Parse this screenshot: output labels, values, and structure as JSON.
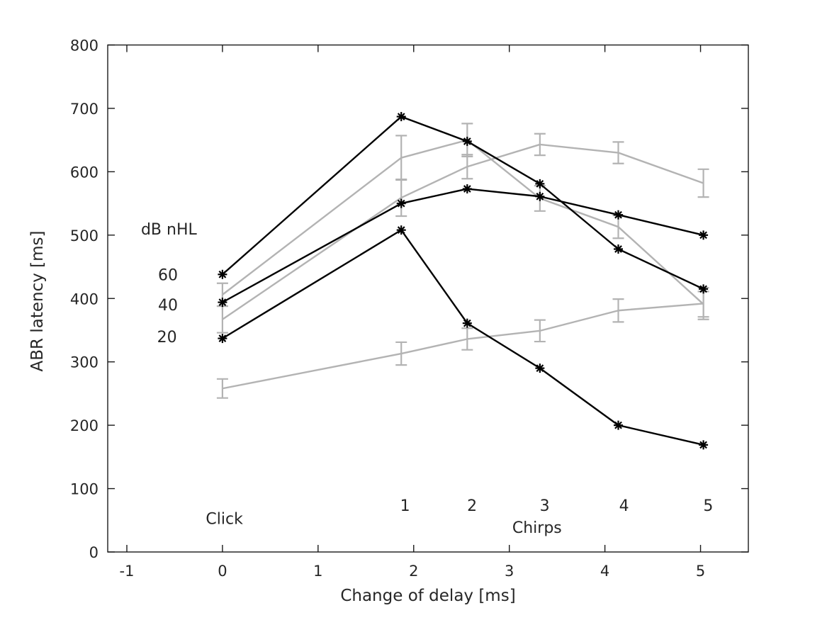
{
  "figure": {
    "background": "#ffffff",
    "text_color": "#262626",
    "spine_color": "#1a1a1a",
    "black_series_color": "#000000",
    "gray_series_color": "#b3b3b3"
  },
  "chart_data": {
    "type": "line",
    "title": "",
    "xlabel": "Change of delay [ms]",
    "ylabel": "ABR latency [ms]",
    "xlim": [
      -1.2,
      5.5
    ],
    "ylim": [
      0,
      800
    ],
    "xticks": [
      -1,
      0,
      1,
      2,
      3,
      4,
      5
    ],
    "yticks": [
      0,
      100,
      200,
      300,
      400,
      500,
      600,
      700,
      800
    ],
    "grid": false,
    "legend": null,
    "x": [
      0,
      1.87,
      2.56,
      3.32,
      4.14,
      5.03
    ],
    "x_condition_labels": [
      "Click",
      "Chirp 1",
      "Chirp 2",
      "Chirp 3",
      "Chirp 4",
      "Chirp 5"
    ],
    "series": [
      {
        "name": "gray-60dB",
        "color": "#b3b3b3",
        "marker": null,
        "values": [
          406,
          622,
          650,
          558,
          513,
          391
        ],
        "errors": [
          18,
          35,
          26,
          20,
          18,
          20
        ]
      },
      {
        "name": "gray-40dB",
        "color": "#b3b3b3",
        "marker": null,
        "values": [
          367,
          559,
          608,
          643,
          630,
          582
        ],
        "errors": [
          21,
          29,
          19,
          17,
          17,
          22
        ]
      },
      {
        "name": "gray-20dB",
        "color": "#b3b3b3",
        "marker": null,
        "values": [
          258,
          313,
          336,
          349,
          381,
          392
        ],
        "errors": [
          15,
          18,
          17,
          17,
          18,
          25
        ]
      },
      {
        "name": "black-60dB",
        "color": "#000000",
        "marker": "asterisk",
        "values": [
          438,
          687,
          648,
          581,
          478,
          415
        ],
        "errors": null
      },
      {
        "name": "black-40dB",
        "color": "#000000",
        "marker": "asterisk",
        "values": [
          394,
          550,
          573,
          561,
          532,
          500
        ],
        "errors": null
      },
      {
        "name": "black-20dB",
        "color": "#000000",
        "marker": "asterisk",
        "values": [
          337,
          508,
          361,
          290,
          200,
          169
        ],
        "errors": null
      }
    ],
    "annotations": [
      {
        "name": "annotation-db-nhl",
        "text": "dB nHL",
        "x": -0.56,
        "y": 510
      },
      {
        "name": "annotation-60",
        "text": "60",
        "x": -0.57,
        "y": 438
      },
      {
        "name": "annotation-40",
        "text": "40",
        "x": -0.57,
        "y": 390
      },
      {
        "name": "annotation-20",
        "text": "20",
        "x": -0.58,
        "y": 340
      },
      {
        "name": "annotation-click",
        "text": "Click",
        "x": 0.02,
        "y": 53
      },
      {
        "name": "annotation-chirp-1",
        "text": "1",
        "x": 1.91,
        "y": 74
      },
      {
        "name": "annotation-chirp-2",
        "text": "2",
        "x": 2.61,
        "y": 74
      },
      {
        "name": "annotation-chirp-3",
        "text": "3",
        "x": 3.37,
        "y": 74
      },
      {
        "name": "annotation-chirp-4",
        "text": "4",
        "x": 4.2,
        "y": 74
      },
      {
        "name": "annotation-chirp-5",
        "text": "5",
        "x": 5.08,
        "y": 74
      },
      {
        "name": "annotation-chirps",
        "text": "Chirps",
        "x": 3.29,
        "y": 39
      }
    ]
  }
}
